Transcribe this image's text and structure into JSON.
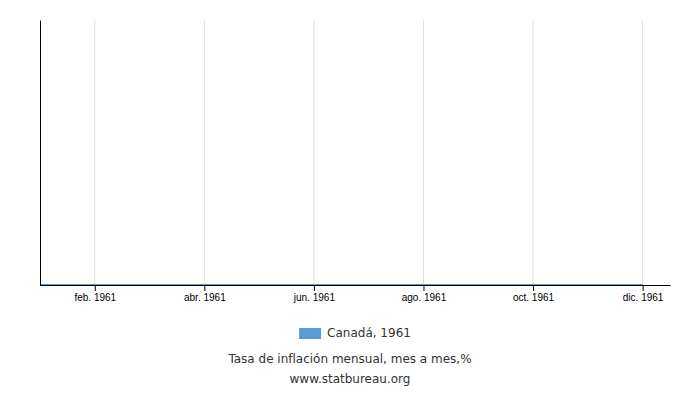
{
  "chart_data": {
    "type": "line",
    "subtitle": "Tasa de inflación mensual, mes a mes,%",
    "annotations": [
      "www.statbureau.org"
    ],
    "x": [
      1,
      2,
      3,
      4,
      5,
      6,
      7,
      8,
      9,
      10,
      11,
      12
    ],
    "series": [
      {
        "name": "Canadá, 1961",
        "color": "#5B9BD5",
        "values": [
          0.0,
          0.0,
          0.0,
          0.0,
          0.0,
          0.0,
          0.0,
          0.0,
          0.0,
          0.0,
          0.0,
          0.0
        ]
      }
    ],
    "xlim": [
      1,
      12.5
    ],
    "xticks": [
      {
        "value": 2,
        "label": "feb. 1961"
      },
      {
        "value": 4,
        "label": "abr. 1961"
      },
      {
        "value": 6,
        "label": "jun. 1961"
      },
      {
        "value": 8,
        "label": "ago. 1961"
      },
      {
        "value": 10,
        "label": "oct. 1961"
      },
      {
        "value": 12,
        "label": "dic. 1961"
      }
    ],
    "ylim": [
      0,
      1
    ],
    "tick_labels": "x",
    "grid": "x",
    "legend": "bottom"
  }
}
